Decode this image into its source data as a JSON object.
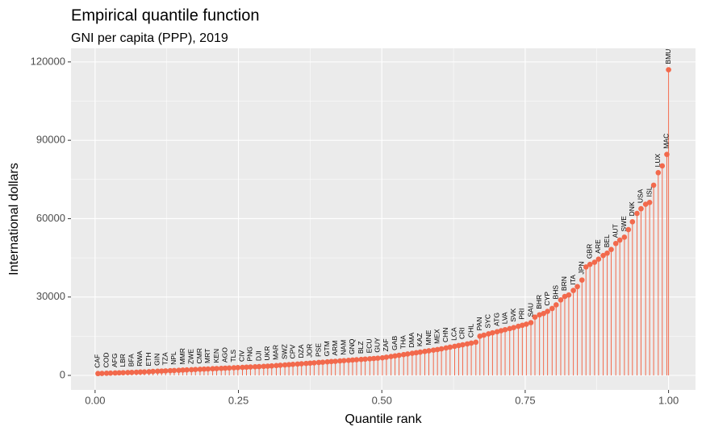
{
  "chart_data": {
    "type": "lollipop",
    "title": "Empirical quantile function",
    "subtitle": "GNI per capita (PPP), 2019",
    "x_label": "Quantile rank",
    "y_label": "International dollars",
    "color": "#f2694c",
    "grid": true,
    "xlim": [
      -0.042,
      1.047
    ],
    "ylim": [
      -5550,
      125200
    ],
    "xticks": [
      {
        "value": 0,
        "label": "0.00"
      },
      0.25,
      {
        "value": 0.5,
        "label": "0.50"
      },
      0.75,
      {
        "value": 1,
        "label": "1.00"
      }
    ],
    "yticks": [
      0,
      30000,
      60000,
      90000,
      120000
    ],
    "x": [
      0.005,
      0.012,
      0.02,
      0.027,
      0.035,
      0.042,
      0.049,
      0.057,
      0.064,
      0.072,
      0.079,
      0.086,
      0.094,
      0.101,
      0.109,
      0.116,
      0.123,
      0.131,
      0.138,
      0.146,
      0.153,
      0.16,
      0.168,
      0.175,
      0.183,
      0.19,
      0.197,
      0.205,
      0.212,
      0.22,
      0.227,
      0.234,
      0.242,
      0.249,
      0.257,
      0.264,
      0.271,
      0.279,
      0.286,
      0.294,
      0.301,
      0.308,
      0.316,
      0.323,
      0.331,
      0.338,
      0.345,
      0.353,
      0.36,
      0.368,
      0.375,
      0.382,
      0.39,
      0.397,
      0.405,
      0.412,
      0.419,
      0.427,
      0.434,
      0.442,
      0.449,
      0.456,
      0.464,
      0.471,
      0.479,
      0.486,
      0.493,
      0.501,
      0.508,
      0.516,
      0.523,
      0.53,
      0.538,
      0.545,
      0.553,
      0.56,
      0.567,
      0.575,
      0.582,
      0.59,
      0.597,
      0.604,
      0.612,
      0.619,
      0.627,
      0.634,
      0.641,
      0.649,
      0.656,
      0.664,
      0.671,
      0.678,
      0.686,
      0.693,
      0.701,
      0.708,
      0.715,
      0.723,
      0.73,
      0.738,
      0.745,
      0.752,
      0.76,
      0.767,
      0.775,
      0.782,
      0.789,
      0.797,
      0.804,
      0.812,
      0.819,
      0.826,
      0.834,
      0.841,
      0.849,
      0.856,
      0.863,
      0.871,
      0.878,
      0.886,
      0.893,
      0.9,
      0.908,
      0.915,
      0.923,
      0.93,
      0.937,
      0.945,
      0.952,
      0.96,
      0.967,
      0.974,
      0.982,
      0.989,
      0.997,
      1.0
    ],
    "values": [
      700,
      760,
      820,
      870,
      930,
      980,
      1040,
      1100,
      1160,
      1220,
      1280,
      1340,
      1400,
      1510,
      1590,
      1660,
      1730,
      1810,
      1880,
      1960,
      2030,
      2100,
      2180,
      2250,
      2330,
      2400,
      2470,
      2550,
      2620,
      2700,
      2770,
      2840,
      2920,
      2990,
      3070,
      3140,
      3210,
      3290,
      3360,
      3440,
      3520,
      3630,
      3760,
      3870,
      4000,
      4110,
      4220,
      4350,
      4460,
      4590,
      4700,
      4810,
      4940,
      5050,
      5180,
      5290,
      5400,
      5530,
      5640,
      5770,
      5880,
      6000,
      6120,
      6240,
      6360,
      6480,
      6590,
      6730,
      6960,
      7230,
      7460,
      7690,
      7950,
      8190,
      8450,
      8680,
      8910,
      9180,
      9410,
      9670,
      9900,
      10170,
      10500,
      10800,
      11130,
      11430,
      11720,
      12060,
      12350,
      12700,
      15000,
      15400,
      15900,
      16300,
      16700,
      17100,
      17500,
      17900,
      18300,
      18800,
      19200,
      19600,
      20200,
      22300,
      23200,
      23700,
      24500,
      25600,
      27000,
      28900,
      30200,
      30800,
      32500,
      34000,
      36500,
      41500,
      42500,
      43300,
      44500,
      45900,
      46800,
      48200,
      50500,
      51800,
      52900,
      55800,
      58800,
      62000,
      63800,
      65500,
      66200,
      72800,
      77600,
      80200,
      84600,
      117000
    ],
    "labels": [
      "CAF",
      null,
      "COD",
      null,
      "AFG",
      null,
      "LBR",
      null,
      "BFA",
      null,
      "RWA",
      null,
      "ETH",
      null,
      "GIN",
      null,
      "TZA",
      null,
      "NPL",
      null,
      "MMR",
      null,
      "ZWE",
      null,
      "CMR",
      null,
      "MRT",
      null,
      "KEN",
      null,
      "AGO",
      null,
      "TLS",
      null,
      "CIV",
      null,
      "PNG",
      null,
      "DJI",
      null,
      "UKR",
      null,
      "MAR",
      null,
      "SWZ",
      null,
      "CPV",
      null,
      "DZA",
      null,
      "JOR",
      null,
      "PSE",
      null,
      "GTM",
      null,
      "ARM",
      null,
      "NAM",
      null,
      "GNQ",
      null,
      "BLZ",
      null,
      "ECU",
      null,
      "GUY",
      null,
      "ZAF",
      null,
      "GAB",
      null,
      "THA",
      null,
      "DMA",
      null,
      "KAZ",
      null,
      "MNE",
      null,
      "MEX",
      null,
      "CHN",
      null,
      "LCA",
      null,
      "CRI",
      null,
      "CHL",
      null,
      "PAN",
      null,
      "SYC",
      null,
      "ATG",
      null,
      "LVA",
      null,
      "SVK",
      null,
      "PRI",
      null,
      "SAU",
      null,
      "BHR",
      null,
      "CYP",
      null,
      "BHS",
      null,
      "BRN",
      null,
      "ITA",
      null,
      "JPN",
      null,
      "GBR",
      null,
      "ARE",
      null,
      "BEL",
      null,
      "AUT",
      null,
      "SWE",
      null,
      "DNK",
      null,
      "USA",
      null,
      "ISL",
      null,
      "LUX",
      null,
      "MAC",
      "BMU"
    ]
  }
}
